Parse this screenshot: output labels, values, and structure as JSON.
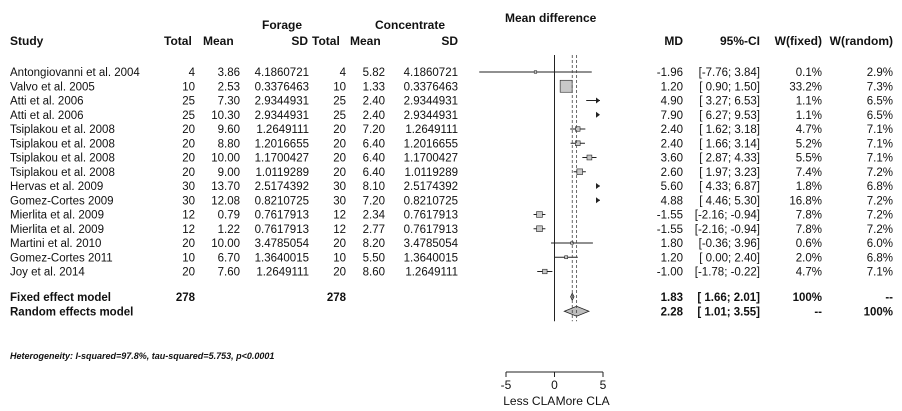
{
  "headers": {
    "study": "Study",
    "forage": "Forage",
    "concentrate": "Concentrate",
    "total": "Total",
    "mean": "Mean",
    "sd": "SD",
    "mean_difference": "Mean difference",
    "md": "MD",
    "ci": "95%-CI",
    "w_fixed": "W(fixed)",
    "w_random": "W(random)"
  },
  "chart_data": {
    "type": "forest",
    "xlim": [
      -5,
      5
    ],
    "ticks": [
      "-5",
      "0",
      "5"
    ],
    "tick_values": [
      -5,
      0,
      5
    ],
    "x_left_label": "Less CLA",
    "x_right_label": "More CLA",
    "studies": [
      {
        "study": "Antongiovanni et al. 2004",
        "f_total": "4",
        "f_mean": "3.86",
        "f_sd": "4.1860721",
        "c_total": "4",
        "c_mean": "5.82",
        "c_sd": "4.1860721",
        "md": "-1.96",
        "ci": "[-7.76; 3.84]",
        "w_fixed": "0.1%",
        "w_random": "2.9%",
        "md_value": -1.96,
        "lo": -7.76,
        "hi": 3.84,
        "weight": 0.1
      },
      {
        "study": "Valvo et al. 2005",
        "f_total": "10",
        "f_mean": "2.53",
        "f_sd": "0.3376463",
        "c_total": "10",
        "c_mean": "1.33",
        "c_sd": "0.3376463",
        "md": "1.20",
        "ci": "[ 0.90; 1.50]",
        "w_fixed": "33.2%",
        "w_random": "7.3%",
        "md_value": 1.2,
        "lo": 0.9,
        "hi": 1.5,
        "weight": 33.2
      },
      {
        "study": "Atti et al. 2006",
        "f_total": "25",
        "f_mean": "7.30",
        "f_sd": "2.9344931",
        "c_total": "25",
        "c_mean": "2.40",
        "c_sd": "2.9344931",
        "md": "4.90",
        "ci": "[ 3.27; 6.53]",
        "w_fixed": "1.1%",
        "w_random": "6.5%",
        "md_value": 4.9,
        "lo": 3.27,
        "hi": 6.53,
        "weight": 1.1
      },
      {
        "study": "Atti et al. 2006",
        "f_total": "25",
        "f_mean": "10.30",
        "f_sd": "2.9344931",
        "c_total": "25",
        "c_mean": "2.40",
        "c_sd": "2.9344931",
        "md": "7.90",
        "ci": "[ 6.27; 9.53]",
        "w_fixed": "1.1%",
        "w_random": "6.5%",
        "md_value": 7.9,
        "lo": 6.27,
        "hi": 9.53,
        "weight": 1.1
      },
      {
        "study": "Tsiplakou et al. 2008",
        "f_total": "20",
        "f_mean": "9.60",
        "f_sd": "1.2649111",
        "c_total": "20",
        "c_mean": "7.20",
        "c_sd": "1.2649111",
        "md": "2.40",
        "ci": "[ 1.62; 3.18]",
        "w_fixed": "4.7%",
        "w_random": "7.1%",
        "md_value": 2.4,
        "lo": 1.62,
        "hi": 3.18,
        "weight": 4.7
      },
      {
        "study": "Tsiplakou et al. 2008",
        "f_total": "20",
        "f_mean": "8.80",
        "f_sd": "1.2016655",
        "c_total": "20",
        "c_mean": "6.40",
        "c_sd": "1.2016655",
        "md": "2.40",
        "ci": "[ 1.66; 3.14]",
        "w_fixed": "5.2%",
        "w_random": "7.1%",
        "md_value": 2.4,
        "lo": 1.66,
        "hi": 3.14,
        "weight": 5.2
      },
      {
        "study": "Tsiplakou et al. 2008",
        "f_total": "20",
        "f_mean": "10.00",
        "f_sd": "1.1700427",
        "c_total": "20",
        "c_mean": "6.40",
        "c_sd": "1.1700427",
        "md": "3.60",
        "ci": "[ 2.87; 4.33]",
        "w_fixed": "5.5%",
        "w_random": "7.1%",
        "md_value": 3.6,
        "lo": 2.87,
        "hi": 4.33,
        "weight": 5.5
      },
      {
        "study": "Tsiplakou et al. 2008",
        "f_total": "20",
        "f_mean": "9.00",
        "f_sd": "1.0119289",
        "c_total": "20",
        "c_mean": "6.40",
        "c_sd": "1.0119289",
        "md": "2.60",
        "ci": "[ 1.97; 3.23]",
        "w_fixed": "7.4%",
        "w_random": "7.2%",
        "md_value": 2.6,
        "lo": 1.97,
        "hi": 3.23,
        "weight": 7.4
      },
      {
        "study": "Hervas et al. 2009",
        "f_total": "30",
        "f_mean": "13.70",
        "f_sd": "2.5174392",
        "c_total": "30",
        "c_mean": "8.10",
        "c_sd": "2.5174392",
        "md": "5.60",
        "ci": "[ 4.33; 6.87]",
        "w_fixed": "1.8%",
        "w_random": "6.8%",
        "md_value": 5.6,
        "lo": 4.33,
        "hi": 6.87,
        "weight": 1.8
      },
      {
        "study": "Gomez-Cortes 2009",
        "f_total": "30",
        "f_mean": "12.08",
        "f_sd": "0.8210725",
        "c_total": "30",
        "c_mean": "7.20",
        "c_sd": "0.8210725",
        "md": "4.88",
        "ci": "[ 4.46; 5.30]",
        "w_fixed": "16.8%",
        "w_random": "7.2%",
        "md_value": 4.88,
        "lo": 4.46,
        "hi": 5.3,
        "weight": 16.8
      },
      {
        "study": "Mierlita et al. 2009",
        "f_total": "12",
        "f_mean": "0.79",
        "f_sd": "0.7617913",
        "c_total": "12",
        "c_mean": "2.34",
        "c_sd": "0.7617913",
        "md": "-1.55",
        "ci": "[-2.16; -0.94]",
        "w_fixed": "7.8%",
        "w_random": "7.2%",
        "md_value": -1.55,
        "lo": -2.16,
        "hi": -0.94,
        "weight": 7.8
      },
      {
        "study": "Mierlita et al. 2009",
        "f_total": "12",
        "f_mean": "1.22",
        "f_sd": "0.7617913",
        "c_total": "12",
        "c_mean": "2.77",
        "c_sd": "0.7617913",
        "md": "-1.55",
        "ci": "[-2.16; -0.94]",
        "w_fixed": "7.8%",
        "w_random": "7.2%",
        "md_value": -1.55,
        "lo": -2.16,
        "hi": -0.94,
        "weight": 7.8
      },
      {
        "study": "Martini et al. 2010",
        "f_total": "20",
        "f_mean": "10.00",
        "f_sd": "3.4785054",
        "c_total": "20",
        "c_mean": "8.20",
        "c_sd": "3.4785054",
        "md": "1.80",
        "ci": "[-0.36; 3.96]",
        "w_fixed": "0.6%",
        "w_random": "6.0%",
        "md_value": 1.8,
        "lo": -0.36,
        "hi": 3.96,
        "weight": 0.6
      },
      {
        "study": "Gomez-Cortes 2011",
        "f_total": "10",
        "f_mean": "6.70",
        "f_sd": "1.3640015",
        "c_total": "10",
        "c_mean": "5.50",
        "c_sd": "1.3640015",
        "md": "1.20",
        "ci": "[ 0.00; 2.40]",
        "w_fixed": "2.0%",
        "w_random": "6.8%",
        "md_value": 1.2,
        "lo": 0.0,
        "hi": 2.4,
        "weight": 2.0
      },
      {
        "study": "Joy et al. 2014",
        "f_total": "20",
        "f_mean": "7.60",
        "f_sd": "1.2649111",
        "c_total": "20",
        "c_mean": "8.60",
        "c_sd": "1.2649111",
        "md": "-1.00",
        "ci": "[-1.78; -0.22]",
        "w_fixed": "4.7%",
        "w_random": "7.1%",
        "md_value": -1.0,
        "lo": -1.78,
        "hi": -0.22,
        "weight": 4.7
      }
    ],
    "fixed": {
      "label": "Fixed effect model",
      "f_total": "278",
      "c_total": "278",
      "md": "1.83",
      "ci": "[ 1.66; 2.01]",
      "w_fixed": "100%",
      "w_random": "--",
      "md_value": 1.83,
      "lo": 1.66,
      "hi": 2.01
    },
    "random": {
      "label": "Random effects model",
      "md": "2.28",
      "ci": "[ 1.01; 3.55]",
      "w_fixed": "--",
      "w_random": "100%",
      "md_value": 2.28,
      "lo": 1.01,
      "hi": 3.55
    },
    "heterogeneity": "Heterogeneity: I-squared=97.8%, tau-squared=5.753, p<0.0001"
  }
}
